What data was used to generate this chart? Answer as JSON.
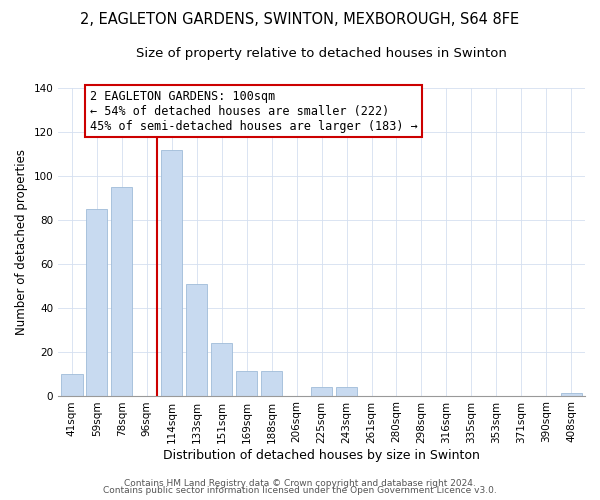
{
  "title": "2, EAGLETON GARDENS, SWINTON, MEXBOROUGH, S64 8FE",
  "subtitle": "Size of property relative to detached houses in Swinton",
  "xlabel": "Distribution of detached houses by size in Swinton",
  "ylabel": "Number of detached properties",
  "bar_color": "#c8daf0",
  "bar_edge_color": "#a0bcd8",
  "categories": [
    "41sqm",
    "59sqm",
    "78sqm",
    "96sqm",
    "114sqm",
    "133sqm",
    "151sqm",
    "169sqm",
    "188sqm",
    "206sqm",
    "225sqm",
    "243sqm",
    "261sqm",
    "280sqm",
    "298sqm",
    "316sqm",
    "335sqm",
    "353sqm",
    "371sqm",
    "390sqm",
    "408sqm"
  ],
  "values": [
    10,
    85,
    95,
    0,
    112,
    51,
    24,
    11,
    11,
    0,
    4,
    4,
    0,
    0,
    0,
    0,
    0,
    0,
    0,
    0,
    1
  ],
  "vline_color": "#cc0000",
  "ylim": [
    0,
    140
  ],
  "yticks": [
    0,
    20,
    40,
    60,
    80,
    100,
    120,
    140
  ],
  "annotation_title": "2 EAGLETON GARDENS: 100sqm",
  "annotation_line1": "← 54% of detached houses are smaller (222)",
  "annotation_line2": "45% of semi-detached houses are larger (183) →",
  "footer1": "Contains HM Land Registry data © Crown copyright and database right 2024.",
  "footer2": "Contains public sector information licensed under the Open Government Licence v3.0.",
  "background_color": "#ffffff",
  "title_fontsize": 10.5,
  "subtitle_fontsize": 9.5,
  "ylabel_fontsize": 8.5,
  "xlabel_fontsize": 9,
  "tick_fontsize": 7.5,
  "ann_fontsize": 8.5,
  "footer_fontsize": 6.5
}
